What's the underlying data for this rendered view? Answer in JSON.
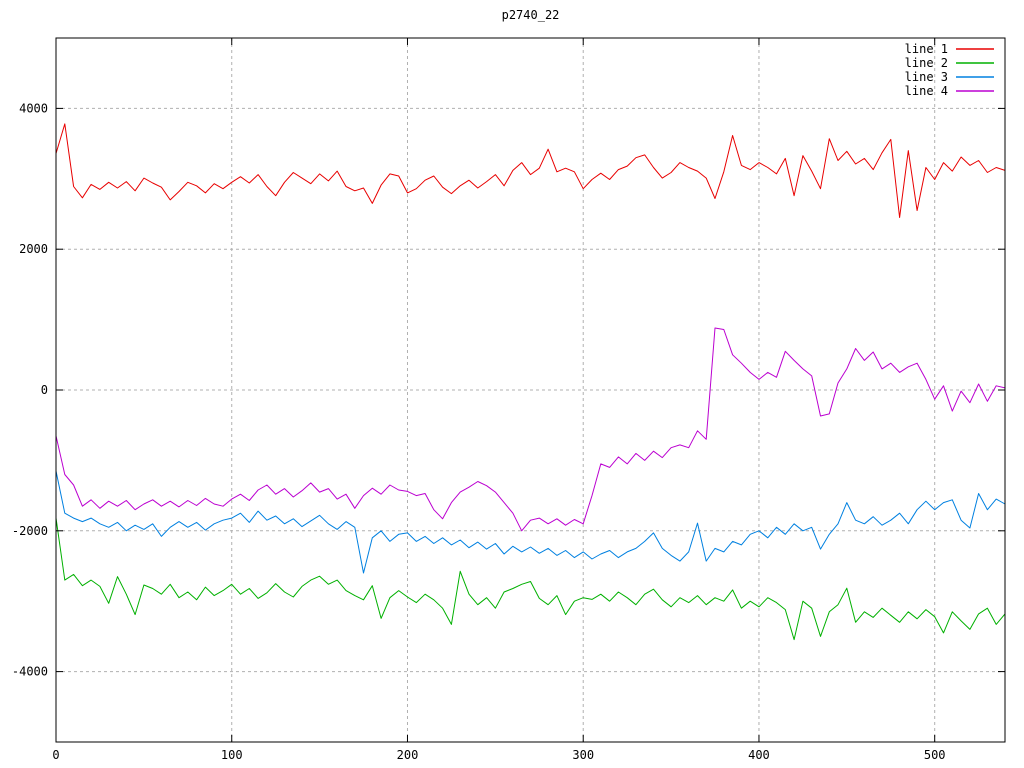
{
  "chart_data": {
    "type": "line",
    "title": "p2740_22",
    "xlabel": "",
    "ylabel": "",
    "xlim": [
      0,
      540
    ],
    "ylim": [
      -5000,
      5000
    ],
    "x_ticks": [
      0,
      100,
      200,
      300,
      400,
      500
    ],
    "x_tick_labels": [
      "0",
      "100",
      "200",
      "300",
      "400",
      "500"
    ],
    "y_ticks": [
      -4000,
      -2000,
      0,
      2000,
      4000
    ],
    "y_tick_labels": [
      "-4000",
      "-2000",
      "0",
      "2000",
      "4000"
    ],
    "grid": true,
    "legend_position": "top-right-inside",
    "x_start": 0,
    "x_step": 5,
    "series": [
      {
        "name": "line 1",
        "color": "#e80000",
        "values": [
          3360,
          3780,
          2890,
          2730,
          2920,
          2850,
          2950,
          2870,
          2960,
          2830,
          3010,
          2940,
          2880,
          2700,
          2820,
          2950,
          2900,
          2800,
          2930,
          2860,
          2950,
          3030,
          2940,
          3060,
          2890,
          2760,
          2950,
          3090,
          3010,
          2930,
          3070,
          2970,
          3110,
          2890,
          2830,
          2870,
          2650,
          2910,
          3070,
          3040,
          2800,
          2860,
          2980,
          3040,
          2880,
          2790,
          2900,
          2980,
          2870,
          2960,
          3060,
          2900,
          3120,
          3230,
          3060,
          3150,
          3420,
          3100,
          3150,
          3100,
          2860,
          2990,
          3080,
          2990,
          3130,
          3180,
          3300,
          3340,
          3160,
          3010,
          3090,
          3230,
          3160,
          3110,
          3010,
          2720,
          3100,
          3615,
          3190,
          3130,
          3230,
          3160,
          3070,
          3290,
          2760,
          3330,
          3110,
          2860,
          3570,
          3260,
          3390,
          3210,
          3290,
          3130,
          3370,
          3560,
          2450,
          3400,
          2550,
          3160,
          2990,
          3230,
          3110,
          3310,
          3190,
          3260,
          3090,
          3160,
          3120
        ]
      },
      {
        "name": "line 2",
        "color": "#00b000",
        "values": [
          -1820,
          -2700,
          -2620,
          -2780,
          -2700,
          -2790,
          -3030,
          -2650,
          -2900,
          -3190,
          -2770,
          -2820,
          -2900,
          -2760,
          -2950,
          -2870,
          -2980,
          -2800,
          -2920,
          -2850,
          -2760,
          -2900,
          -2820,
          -2960,
          -2880,
          -2750,
          -2870,
          -2940,
          -2790,
          -2700,
          -2645,
          -2760,
          -2700,
          -2850,
          -2920,
          -2980,
          -2780,
          -3245,
          -2950,
          -2850,
          -2940,
          -3020,
          -2900,
          -2980,
          -3100,
          -3330,
          -2575,
          -2900,
          -3050,
          -2950,
          -3100,
          -2870,
          -2820,
          -2760,
          -2720,
          -2960,
          -3050,
          -2920,
          -3190,
          -3000,
          -2950,
          -2975,
          -2900,
          -3000,
          -2870,
          -2950,
          -3050,
          -2900,
          -2830,
          -2980,
          -3080,
          -2950,
          -3020,
          -2920,
          -3050,
          -2950,
          -3000,
          -2840,
          -3100,
          -3000,
          -3080,
          -2950,
          -3020,
          -3120,
          -3545,
          -3000,
          -3100,
          -3500,
          -3150,
          -3050,
          -2815,
          -3300,
          -3150,
          -3230,
          -3100,
          -3200,
          -3300,
          -3150,
          -3250,
          -3120,
          -3220,
          -3450,
          -3150,
          -3280,
          -3400,
          -3180,
          -3100,
          -3330,
          -3180
        ]
      },
      {
        "name": "line 3",
        "color": "#0080e0",
        "values": [
          -1150,
          -1750,
          -1820,
          -1870,
          -1820,
          -1900,
          -1950,
          -1880,
          -2000,
          -1920,
          -1980,
          -1900,
          -2080,
          -1950,
          -1870,
          -1950,
          -1880,
          -1990,
          -1900,
          -1850,
          -1820,
          -1750,
          -1880,
          -1720,
          -1850,
          -1790,
          -1900,
          -1830,
          -1940,
          -1860,
          -1780,
          -1900,
          -1980,
          -1870,
          -1950,
          -2600,
          -2100,
          -2000,
          -2150,
          -2050,
          -2030,
          -2150,
          -2080,
          -2180,
          -2100,
          -2200,
          -2130,
          -2240,
          -2160,
          -2260,
          -2180,
          -2330,
          -2220,
          -2300,
          -2230,
          -2320,
          -2250,
          -2350,
          -2280,
          -2380,
          -2300,
          -2400,
          -2330,
          -2280,
          -2380,
          -2300,
          -2250,
          -2150,
          -2030,
          -2250,
          -2350,
          -2430,
          -2300,
          -1890,
          -2430,
          -2250,
          -2300,
          -2150,
          -2200,
          -2050,
          -2000,
          -2100,
          -1950,
          -2050,
          -1900,
          -2000,
          -1950,
          -2260,
          -2050,
          -1900,
          -1600,
          -1850,
          -1900,
          -1800,
          -1920,
          -1850,
          -1750,
          -1900,
          -1700,
          -1580,
          -1700,
          -1600,
          -1560,
          -1850,
          -1960,
          -1470,
          -1700,
          -1550,
          -1620
        ]
      },
      {
        "name": "line 4",
        "color": "#bb00d0",
        "values": [
          -650,
          -1200,
          -1350,
          -1650,
          -1560,
          -1680,
          -1580,
          -1650,
          -1570,
          -1700,
          -1620,
          -1560,
          -1650,
          -1580,
          -1660,
          -1570,
          -1640,
          -1540,
          -1620,
          -1650,
          -1550,
          -1480,
          -1570,
          -1420,
          -1350,
          -1480,
          -1400,
          -1520,
          -1430,
          -1320,
          -1450,
          -1400,
          -1550,
          -1480,
          -1680,
          -1500,
          -1395,
          -1480,
          -1350,
          -1420,
          -1440,
          -1500,
          -1470,
          -1700,
          -1830,
          -1600,
          -1450,
          -1380,
          -1300,
          -1360,
          -1450,
          -1600,
          -1750,
          -2000,
          -1850,
          -1820,
          -1900,
          -1830,
          -1920,
          -1840,
          -1900,
          -1500,
          -1050,
          -1100,
          -950,
          -1050,
          -900,
          -1000,
          -870,
          -960,
          -820,
          -780,
          -820,
          -580,
          -700,
          880,
          860,
          500,
          380,
          250,
          150,
          250,
          180,
          550,
          420,
          300,
          200,
          -370,
          -340,
          100,
          300,
          590,
          420,
          540,
          300,
          380,
          250,
          330,
          380,
          150,
          -130,
          60,
          -300,
          -15,
          -180,
          85,
          -160,
          60,
          30
        ]
      }
    ]
  },
  "colors": {
    "background": "#ffffff",
    "border": "#000000",
    "grid": "#b0b0b0",
    "text": "#000000"
  }
}
